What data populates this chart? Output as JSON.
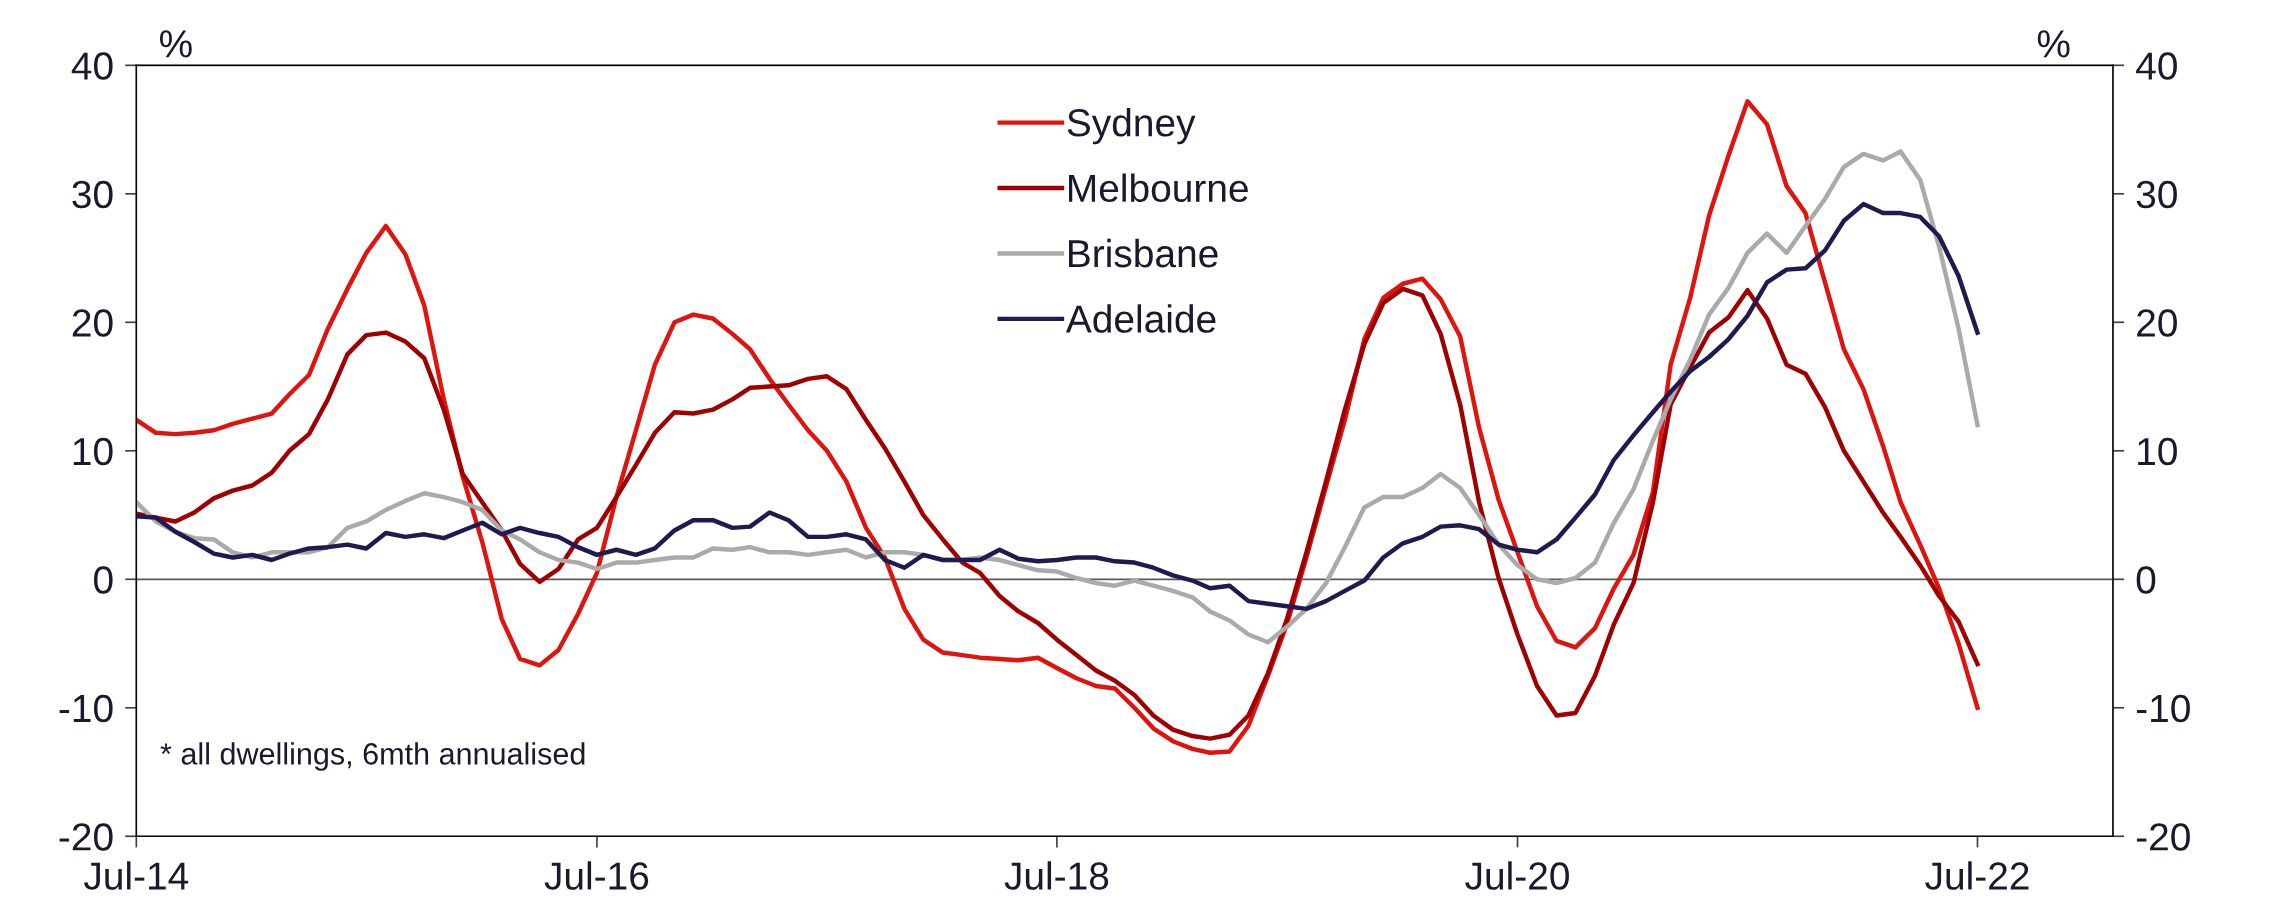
{
  "chart_data": {
    "type": "line",
    "x": [
      "2014-07",
      "2014-08",
      "2014-09",
      "2014-10",
      "2014-11",
      "2014-12",
      "2015-01",
      "2015-02",
      "2015-03",
      "2015-04",
      "2015-05",
      "2015-06",
      "2015-07",
      "2015-08",
      "2015-09",
      "2015-10",
      "2015-11",
      "2015-12",
      "2016-01",
      "2016-02",
      "2016-03",
      "2016-04",
      "2016-05",
      "2016-06",
      "2016-07",
      "2016-08",
      "2016-09",
      "2016-10",
      "2016-11",
      "2016-12",
      "2017-01",
      "2017-02",
      "2017-03",
      "2017-04",
      "2017-05",
      "2017-06",
      "2017-07",
      "2017-08",
      "2017-09",
      "2017-10",
      "2017-11",
      "2017-12",
      "2018-01",
      "2018-02",
      "2018-03",
      "2018-04",
      "2018-05",
      "2018-06",
      "2018-07",
      "2018-08",
      "2018-09",
      "2018-10",
      "2018-11",
      "2018-12",
      "2019-01",
      "2019-02",
      "2019-03",
      "2019-04",
      "2019-05",
      "2019-06",
      "2019-07",
      "2019-08",
      "2019-09",
      "2019-10",
      "2019-11",
      "2019-12",
      "2020-01",
      "2020-02",
      "2020-03",
      "2020-04",
      "2020-05",
      "2020-06",
      "2020-07",
      "2020-08",
      "2020-09",
      "2020-10",
      "2020-11",
      "2020-12",
      "2021-01",
      "2021-02",
      "2021-03",
      "2021-04",
      "2021-05",
      "2021-06",
      "2021-07",
      "2021-08",
      "2021-09",
      "2021-10",
      "2021-11",
      "2021-12",
      "2022-01",
      "2022-02",
      "2022-03",
      "2022-04",
      "2022-05",
      "2022-06",
      "2022-07"
    ],
    "series": [
      {
        "name": "Sydney",
        "color": "#e0140f",
        "values": [
          12.4,
          11.4,
          11.3,
          11.4,
          11.6,
          12.1,
          12.5,
          12.9,
          14.4,
          15.9,
          19.5,
          22.6,
          25.4,
          27.5,
          25.3,
          21.3,
          14,
          8,
          2.9,
          -3.1,
          -6.2,
          -6.7,
          -5.5,
          -2.7,
          0.5,
          6.4,
          11.6,
          16.7,
          20,
          20.6,
          20.3,
          19.1,
          17.9,
          15.6,
          13.6,
          11.6,
          10,
          7.6,
          4,
          1.7,
          -2.3,
          -4.7,
          -5.7,
          -5.9,
          -6.1,
          -6.2,
          -6.3,
          -6.1,
          -6.9,
          -7.7,
          -8.3,
          -8.5,
          -10,
          -11.6,
          -12.6,
          -13.2,
          -13.5,
          -13.4,
          -11.4,
          -7.5,
          -3.5,
          1.7,
          7.2,
          12.4,
          18.7,
          21.9,
          23,
          23.4,
          21.8,
          18.9,
          11.8,
          6.2,
          2.1,
          -2.1,
          -4.8,
          -5.3,
          -3.8,
          -0.7,
          1.9,
          6.8,
          16.7,
          21.9,
          28.3,
          33,
          37.2,
          35.4,
          30.6,
          28.5,
          23.1,
          17.9,
          14.8,
          10.4,
          6,
          2.7,
          -0.7,
          -5,
          -10
        ]
      },
      {
        "name": "Melbourne",
        "color": "#a00000",
        "values": [
          5.1,
          4.8,
          4.5,
          5.2,
          6.3,
          6.9,
          7.3,
          8.3,
          10,
          11.3,
          14,
          17.5,
          19,
          19.2,
          18.5,
          17.2,
          13.2,
          8.2,
          6,
          3.8,
          1.2,
          -0.2,
          0.8,
          3.1,
          4,
          6.4,
          8.9,
          11.4,
          13,
          12.9,
          13.2,
          14,
          14.9,
          15,
          15.1,
          15.6,
          15.8,
          14.8,
          12.4,
          10.2,
          7.6,
          5,
          3.1,
          1.3,
          0.5,
          -1.3,
          -2.5,
          -3.4,
          -4.7,
          -5.9,
          -7.1,
          -7.9,
          -9,
          -10.6,
          -11.7,
          -12.2,
          -12.4,
          -12.1,
          -10.6,
          -7.3,
          -3.1,
          2.1,
          7.6,
          13.2,
          18.3,
          21.5,
          22.6,
          22.1,
          19.1,
          13.6,
          6,
          0.1,
          -4.3,
          -8.3,
          -10.6,
          -10.4,
          -7.5,
          -3.5,
          -0.3,
          6,
          13.6,
          16.5,
          19.2,
          20.4,
          22.5,
          20.3,
          16.7,
          16,
          13.4,
          10,
          7.6,
          5.2,
          3.3,
          1.1,
          -1.3,
          -3.3,
          -6.6
        ]
      },
      {
        "name": "Brisbane",
        "color": "#aaaaaa",
        "values": [
          6,
          4.5,
          3.7,
          3.2,
          3.1,
          2.1,
          1.7,
          2.1,
          2.1,
          2.1,
          2.5,
          4,
          4.5,
          5.4,
          6.1,
          6.7,
          6.4,
          6,
          5.4,
          3.8,
          3.1,
          2.1,
          1.5,
          1.3,
          0.8,
          1.3,
          1.3,
          1.5,
          1.7,
          1.7,
          2.4,
          2.3,
          2.5,
          2.1,
          2.1,
          1.9,
          2.1,
          2.3,
          1.7,
          2.1,
          2.1,
          1.9,
          1.5,
          1.5,
          1.7,
          1.5,
          1.1,
          0.7,
          0.6,
          0.1,
          -0.3,
          -0.5,
          -0.1,
          -0.5,
          -0.9,
          -1.4,
          -2.5,
          -3.2,
          -4.3,
          -4.9,
          -3.7,
          -2.3,
          -0.3,
          2.5,
          5.6,
          6.4,
          6.4,
          7.1,
          8.2,
          7.1,
          5,
          2.7,
          1.1,
          0,
          -0.3,
          0.1,
          1.3,
          4.4,
          7,
          10.8,
          14,
          17.1,
          20.6,
          22.7,
          25.4,
          26.9,
          25.4,
          27.5,
          29.6,
          32.1,
          33.1,
          32.6,
          33.3,
          31.1,
          25.9,
          19.5,
          12
        ]
      },
      {
        "name": "Adelaide",
        "color": "#1f1a4f",
        "values": [
          4.9,
          4.8,
          3.7,
          2.9,
          2,
          1.7,
          1.9,
          1.5,
          2,
          2.4,
          2.5,
          2.7,
          2.4,
          3.6,
          3.3,
          3.5,
          3.2,
          3.8,
          4.4,
          3.5,
          4,
          3.6,
          3.3,
          2.5,
          1.9,
          2.3,
          1.9,
          2.4,
          3.8,
          4.6,
          4.6,
          4,
          4.1,
          5.2,
          4.6,
          3.3,
          3.3,
          3.5,
          3.1,
          1.5,
          0.9,
          1.9,
          1.5,
          1.5,
          1.5,
          2.3,
          1.6,
          1.4,
          1.5,
          1.7,
          1.7,
          1.4,
          1.3,
          0.9,
          0.3,
          -0.1,
          -0.7,
          -0.5,
          -1.7,
          -1.9,
          -2.1,
          -2.3,
          -1.7,
          -0.9,
          -0.1,
          1.7,
          2.8,
          3.3,
          4.1,
          4.2,
          3.9,
          2.7,
          2.3,
          2.1,
          3.1,
          4.8,
          6.6,
          9.3,
          11.2,
          13,
          14.6,
          16.2,
          17.3,
          18.7,
          20.5,
          23.1,
          24.1,
          24.2,
          25.6,
          27.9,
          29.2,
          28.5,
          28.5,
          28.2,
          26.7,
          23.6,
          19.2
        ]
      }
    ],
    "ylabel": "%",
    "y2label": "%",
    "xlim": [
      "2014-07",
      "2023-02"
    ],
    "xticks": [
      {
        "value": "2014-07",
        "label": "Jul-14"
      },
      {
        "value": "2016-07",
        "label": "Jul-16"
      },
      {
        "value": "2018-07",
        "label": "Jul-18"
      },
      {
        "value": "2020-07",
        "label": "Jul-20"
      },
      {
        "value": "2022-07",
        "label": "Jul-22"
      }
    ],
    "ylim": [
      -20,
      40
    ],
    "yticks": [
      -20,
      -10,
      0,
      10,
      20,
      30,
      40
    ],
    "y2lim": [
      -20,
      40
    ],
    "y2ticks": [
      -20,
      -10,
      0,
      10,
      20,
      30,
      40
    ],
    "ref_lines": [
      {
        "axis": "y",
        "value": 0,
        "color": "#595959"
      }
    ],
    "annotations": [
      "* all dwellings, 6mth annualised"
    ],
    "legend": "top",
    "grid": false,
    "marker": "none",
    "line_style": "solid"
  }
}
